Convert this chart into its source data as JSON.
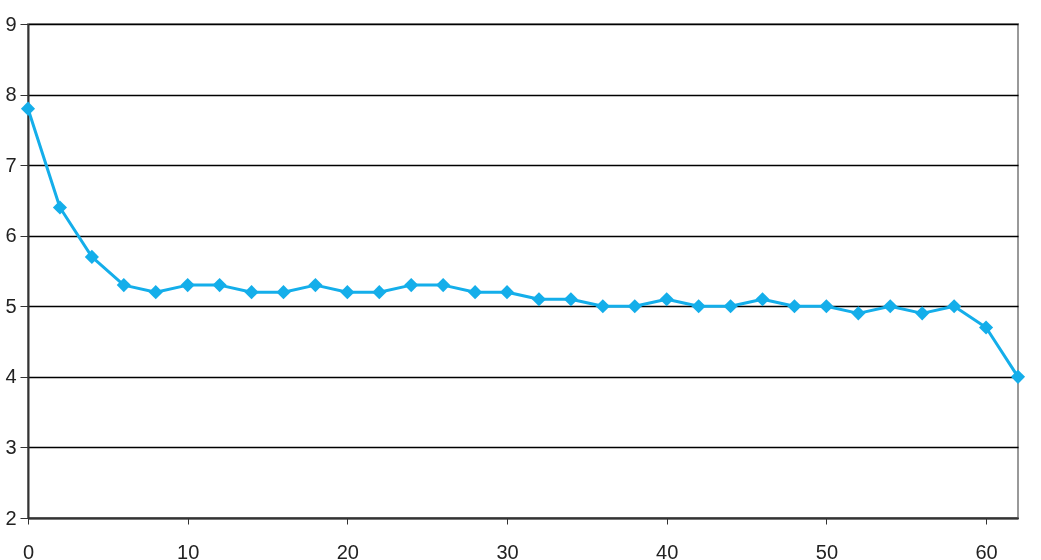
{
  "chart_data": {
    "type": "line",
    "x": [
      0,
      2,
      4,
      6,
      8,
      10,
      12,
      14,
      16,
      18,
      20,
      22,
      24,
      26,
      28,
      30,
      32,
      34,
      36,
      38,
      40,
      42,
      44,
      46,
      48,
      50,
      52,
      54,
      56,
      58,
      60,
      62
    ],
    "series": [
      {
        "color": "#14aeea",
        "values": [
          7.8,
          6.4,
          5.7,
          5.3,
          5.2,
          5.3,
          5.3,
          5.2,
          5.2,
          5.3,
          5.2,
          5.2,
          5.3,
          5.3,
          5.2,
          5.2,
          5.1,
          5.1,
          5.0,
          5.0,
          5.1,
          5.0,
          5.0,
          5.1,
          5.0,
          5.0,
          4.9,
          5.0,
          4.9,
          5.0,
          4.7,
          4.0
        ]
      }
    ],
    "xlim": [
      0,
      62
    ],
    "xticks": [
      0,
      10,
      20,
      30,
      40,
      50,
      60
    ],
    "ylim": [
      2,
      9
    ],
    "yticks": [
      2,
      3,
      4,
      5,
      6,
      7,
      8,
      9
    ],
    "grid": "y",
    "marker": "diamond",
    "line_style": "solid",
    "legend": false
  }
}
